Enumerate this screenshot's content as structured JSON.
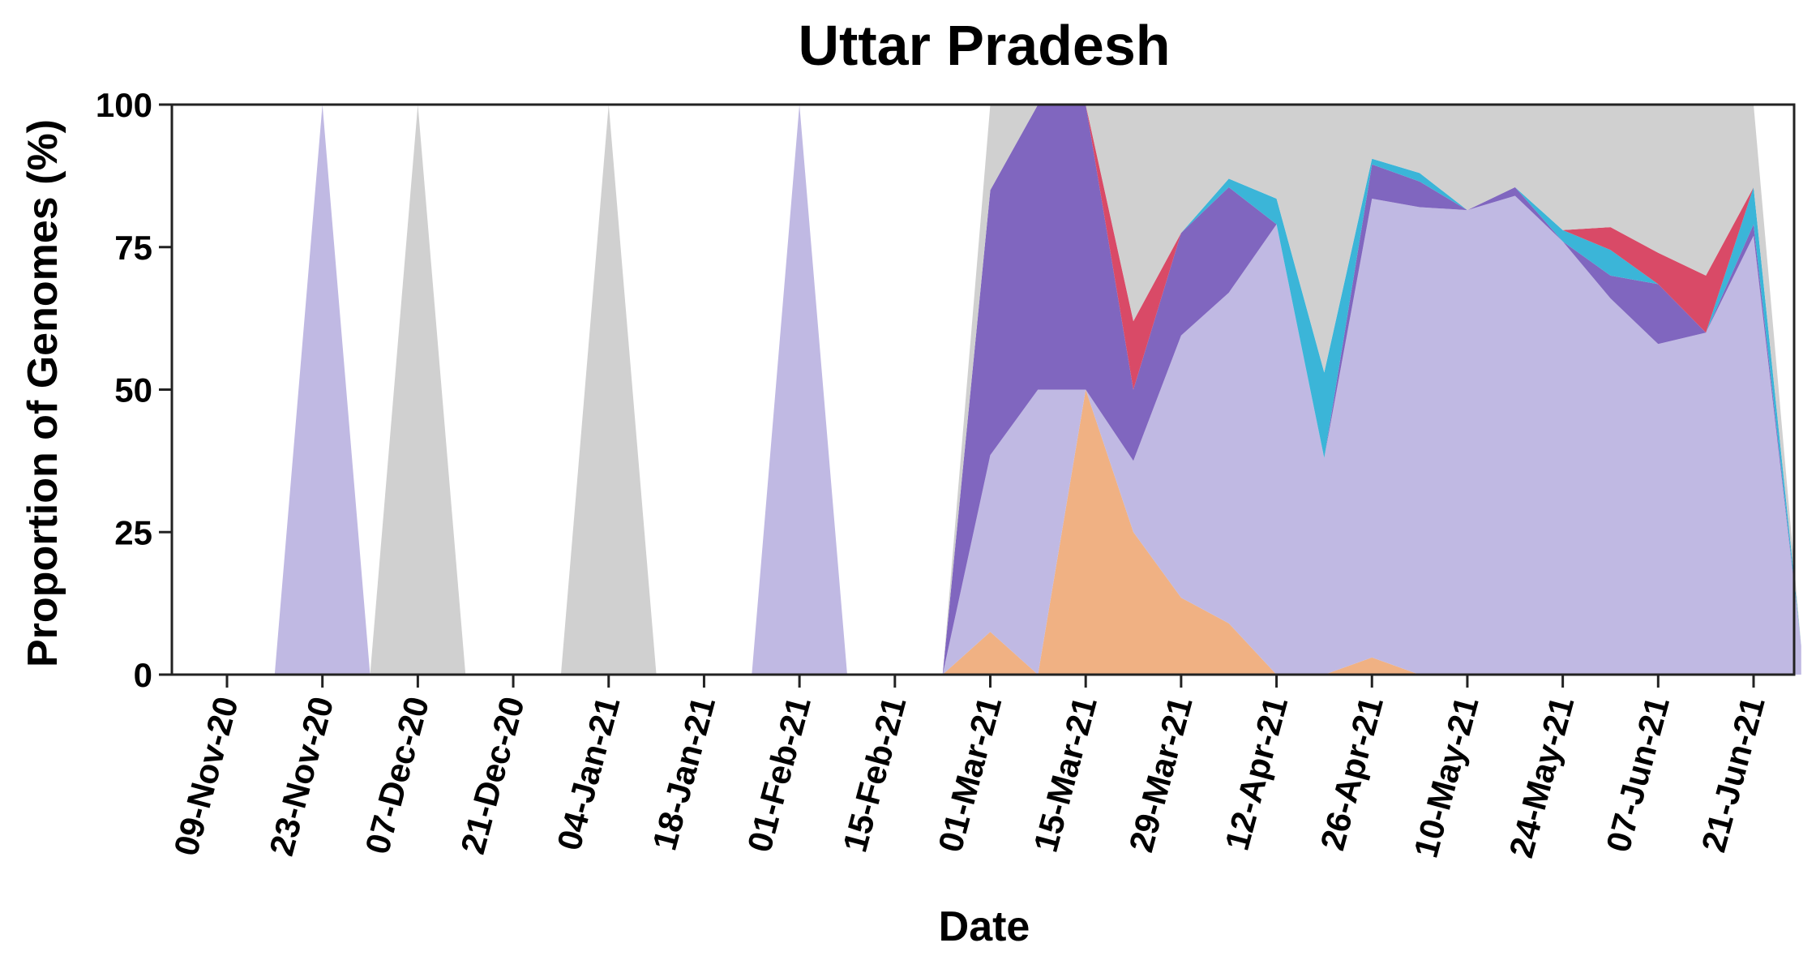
{
  "chart_data": {
    "type": "area",
    "title": "Uttar Pradesh",
    "xlabel": "Date",
    "ylabel": "Proportion of Genomes (%)",
    "ylim": [
      0,
      100
    ],
    "yticks": [
      0,
      25,
      50,
      75,
      100
    ],
    "x_ticks": [
      "09-Nov-20",
      "23-Nov-20",
      "07-Dec-20",
      "21-Dec-20",
      "04-Jan-21",
      "18-Jan-21",
      "01-Feb-21",
      "15-Feb-21",
      "01-Mar-21",
      "15-Mar-21",
      "29-Mar-21",
      "12-Apr-21",
      "26-Apr-21",
      "10-May-21",
      "24-May-21",
      "07-Jun-21",
      "21-Jun-21"
    ],
    "x": [
      "09-Nov-20",
      "16-Nov-20",
      "23-Nov-20",
      "30-Nov-20",
      "07-Dec-20",
      "14-Dec-20",
      "21-Dec-20",
      "28-Dec-20",
      "04-Jan-21",
      "11-Jan-21",
      "18-Jan-21",
      "25-Jan-21",
      "01-Feb-21",
      "08-Feb-21",
      "15-Feb-21",
      "22-Feb-21",
      "01-Mar-21",
      "08-Mar-21",
      "15-Mar-21",
      "22-Mar-21",
      "29-Mar-21",
      "05-Apr-21",
      "12-Apr-21",
      "19-Apr-21",
      "26-Apr-21",
      "03-May-21",
      "10-May-21",
      "17-May-21",
      "24-May-21",
      "31-May-21",
      "07-Jun-21",
      "14-Jun-21",
      "21-Jun-21",
      "28-Jun-21"
    ],
    "grid": false,
    "legend": "none",
    "series": [
      {
        "color": "#f0b183",
        "values": [
          0,
          0,
          0,
          0,
          0,
          0,
          0,
          0,
          0,
          0,
          0,
          0,
          0,
          0,
          0,
          0,
          7.5,
          0,
          50,
          25,
          13.5,
          9,
          0,
          0,
          3,
          0,
          0,
          0,
          0,
          0,
          0,
          0,
          0,
          0
        ]
      },
      {
        "color": "#c0b9e3",
        "values": [
          0,
          0,
          100,
          0,
          0,
          0,
          0,
          0,
          0,
          0,
          0,
          0,
          100,
          0,
          0,
          0,
          31,
          50,
          0,
          12.5,
          46,
          58,
          79,
          38,
          80.5,
          82,
          81.5,
          84,
          76,
          66,
          58,
          60,
          77,
          5
        ]
      },
      {
        "color": "#8066bf",
        "values": [
          0,
          0,
          0,
          0,
          0,
          0,
          0,
          0,
          0,
          0,
          0,
          0,
          0,
          0,
          0,
          0,
          46.5,
          50,
          50,
          12.5,
          18,
          18.5,
          0,
          0,
          6,
          4.5,
          0,
          1.5,
          0,
          4,
          10.5,
          0,
          2,
          0
        ]
      },
      {
        "color": "#3bb5d8",
        "values": [
          0,
          0,
          0,
          0,
          0,
          0,
          0,
          0,
          0,
          0,
          0,
          0,
          0,
          0,
          0,
          0,
          0,
          0,
          0,
          0,
          0,
          1.5,
          4.5,
          15,
          1,
          1.5,
          0,
          0,
          2,
          4.5,
          0,
          0,
          6.5,
          0
        ]
      },
      {
        "color": "#d94a67",
        "values": [
          0,
          0,
          0,
          0,
          0,
          0,
          0,
          0,
          0,
          0,
          0,
          0,
          0,
          0,
          0,
          0,
          0,
          0,
          0,
          12,
          0,
          0,
          0,
          0,
          0,
          0,
          0,
          0,
          0,
          4,
          5.5,
          10,
          0,
          0
        ]
      },
      {
        "color": "#d0d0d0",
        "values": [
          0,
          0,
          0,
          0,
          100,
          0,
          0,
          0,
          100,
          0,
          0,
          0,
          0,
          0,
          0,
          0,
          15,
          0,
          0,
          38,
          22.5,
          13,
          16.5,
          47,
          9.5,
          12,
          18.5,
          14.5,
          22,
          21.5,
          26,
          30,
          14.5,
          0
        ]
      }
    ]
  }
}
